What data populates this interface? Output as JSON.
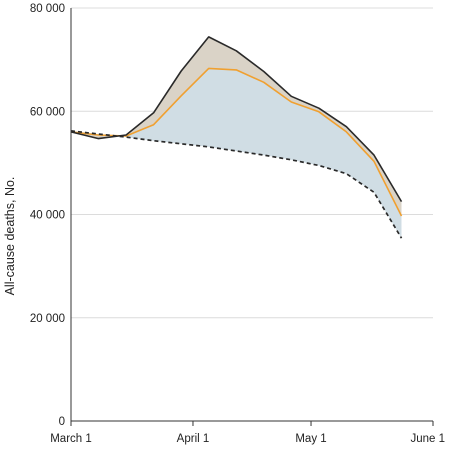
{
  "chart_data": {
    "type": "line",
    "title": "",
    "xlabel": "",
    "ylabel": "All-cause deaths, No.",
    "ylim": [
      0,
      80000
    ],
    "xlim": [
      "2020-03-01",
      "2020-06-01"
    ],
    "yticks": [
      0,
      20000,
      40000,
      60000,
      80000
    ],
    "ytick_labels": [
      "0",
      "20 000",
      "40 000",
      "60 000",
      "80 000"
    ],
    "xticks": [
      "2020-03-01",
      "2020-04-01",
      "2020-05-01",
      "2020-06-01"
    ],
    "xtick_labels": [
      "March 1",
      "April 1",
      "May 1",
      "June 1"
    ],
    "grid": "horizontal",
    "legend": "none",
    "series": [
      {
        "x": [
          "2020-03-01",
          "2020-03-08",
          "2020-03-15",
          "2020-03-22",
          "2020-03-29",
          "2020-04-05",
          "2020-04-12",
          "2020-04-19",
          "2020-04-26",
          "2020-05-03",
          "2020-05-10",
          "2020-05-17",
          "2020-05-24",
          "2020-05-31"
        ],
        "values": [
          56000,
          54700,
          55400,
          59700,
          67800,
          74400,
          71700,
          67700,
          62900,
          60600,
          57000,
          51500,
          42500,
          null
        ],
        "style": "solid",
        "color": "#2a2a2a"
      },
      {
        "x": [
          "2020-03-01",
          "2020-03-08",
          "2020-03-15",
          "2020-03-22",
          "2020-03-29",
          "2020-04-05",
          "2020-04-12",
          "2020-04-19",
          "2020-04-26",
          "2020-05-03",
          "2020-05-10",
          "2020-05-17",
          "2020-05-24",
          "2020-05-31"
        ],
        "values": [
          56000,
          55400,
          55200,
          57400,
          63000,
          68300,
          68000,
          65600,
          61800,
          59900,
          56000,
          50300,
          39700,
          null
        ],
        "style": "solid",
        "color": "#f0a030"
      },
      {
        "x": [
          "2020-03-01",
          "2020-03-08",
          "2020-03-15",
          "2020-03-22",
          "2020-03-29",
          "2020-04-05",
          "2020-04-12",
          "2020-04-19",
          "2020-04-26",
          "2020-05-03",
          "2020-05-10",
          "2020-05-17",
          "2020-05-24",
          "2020-05-31"
        ],
        "values": [
          56200,
          55600,
          55000,
          54300,
          53700,
          53100,
          52300,
          51500,
          50600,
          49500,
          47900,
          44300,
          35400,
          null
        ],
        "style": "dashed",
        "color": "#2a2a2a"
      }
    ],
    "fills": [
      {
        "between": [
          0,
          1
        ],
        "color": "#dad3c7"
      },
      {
        "between": [
          1,
          2
        ],
        "color": "#d0dde4"
      }
    ]
  }
}
